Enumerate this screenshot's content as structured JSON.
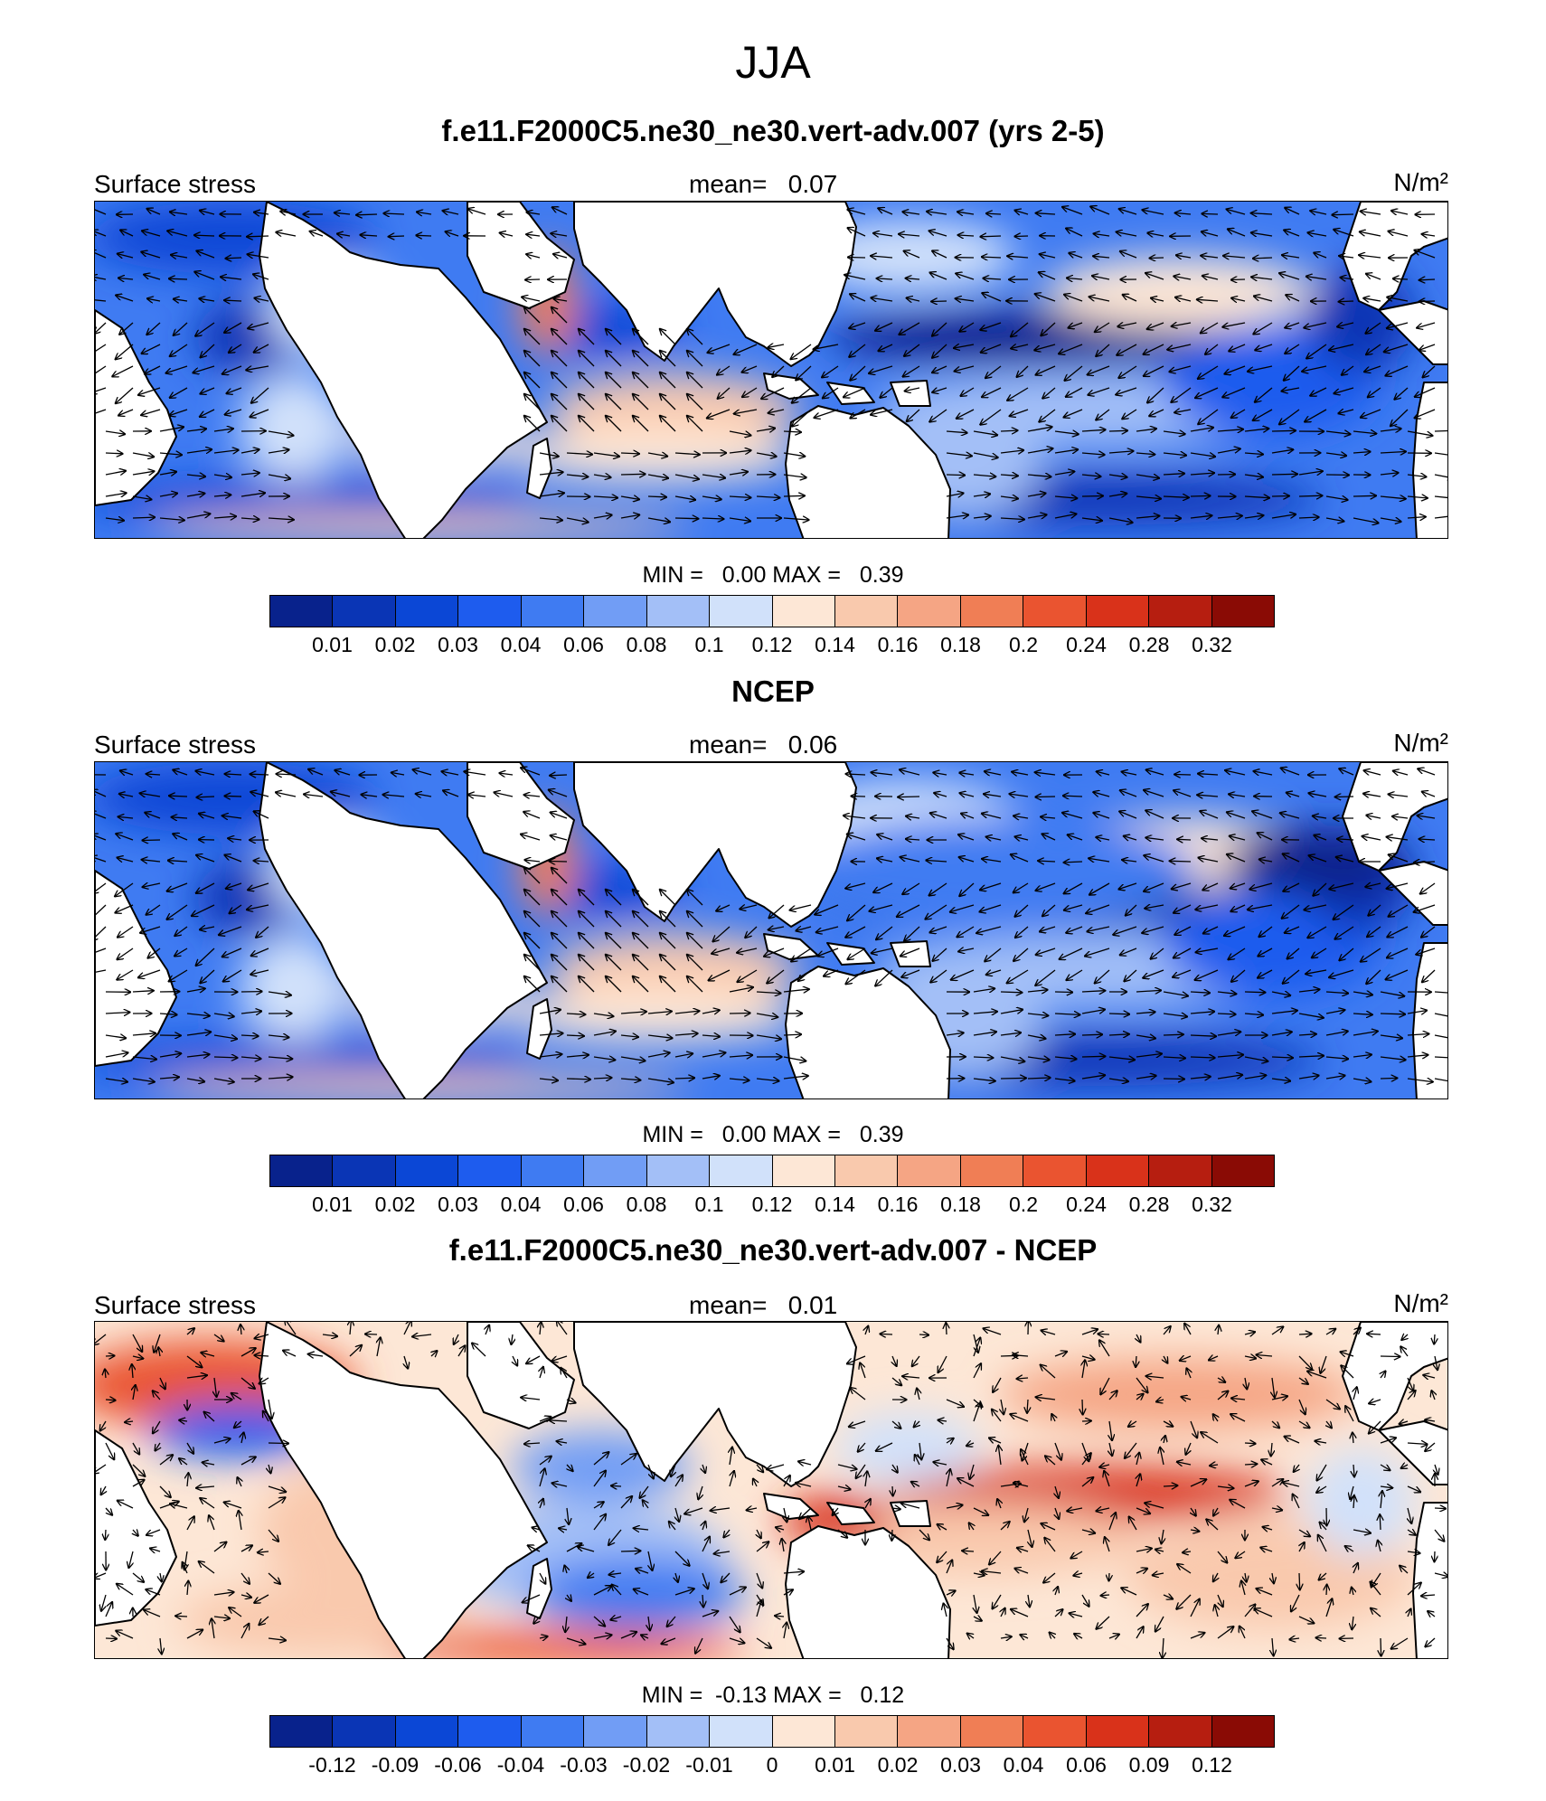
{
  "title": "JJA",
  "panels": [
    {
      "title": "f.e11.F2000C5.ne30_ne30.vert-adv.007 (yrs 2-5)",
      "left_label": "Surface stress",
      "mean_label": "mean=",
      "mean_value": "0.07",
      "units": "N/m²",
      "minmax": "MIN =   0.00 MAX =   0.39",
      "colorbar_ticks": [
        "0.01",
        "0.02",
        "0.03",
        "0.04",
        "0.06",
        "0.08",
        "0.1",
        "0.12",
        "0.14",
        "0.16",
        "0.18",
        "0.2",
        "0.24",
        "0.28",
        "0.32"
      ],
      "colorbar_colors": [
        "#08228c",
        "#0a35b5",
        "#0b47d6",
        "#1e5cee",
        "#3f7bf2",
        "#719df5",
        "#a3bff7",
        "#d1e1fa",
        "#fde7d6",
        "#f9c9ad",
        "#f5a584",
        "#f07e55",
        "#ea5430",
        "#d9321a",
        "#b61e10",
        "#8a0b05"
      ]
    },
    {
      "title": "NCEP",
      "left_label": "Surface stress",
      "mean_label": "mean=",
      "mean_value": "0.06",
      "units": "N/m²",
      "minmax": "MIN =   0.00 MAX =   0.39",
      "colorbar_ticks": [
        "0.01",
        "0.02",
        "0.03",
        "0.04",
        "0.06",
        "0.08",
        "0.1",
        "0.12",
        "0.14",
        "0.16",
        "0.18",
        "0.2",
        "0.24",
        "0.28",
        "0.32"
      ],
      "colorbar_colors": [
        "#08228c",
        "#0a35b5",
        "#0b47d6",
        "#1e5cee",
        "#3f7bf2",
        "#719df5",
        "#a3bff7",
        "#d1e1fa",
        "#fde7d6",
        "#f9c9ad",
        "#f5a584",
        "#f07e55",
        "#ea5430",
        "#d9321a",
        "#b61e10",
        "#8a0b05"
      ]
    },
    {
      "title": "f.e11.F2000C5.ne30_ne30.vert-adv.007 - NCEP",
      "left_label": "Surface stress",
      "mean_label": "mean=",
      "mean_value": "0.01",
      "units": "N/m²",
      "minmax": "MIN =  -0.13 MAX =   0.12",
      "colorbar_ticks": [
        "-0.12",
        "-0.09",
        "-0.06",
        "-0.04",
        "-0.03",
        "-0.02",
        "-0.01",
        "0",
        "0.01",
        "0.02",
        "0.03",
        "0.04",
        "0.06",
        "0.09",
        "0.12"
      ],
      "colorbar_colors": [
        "#08228c",
        "#0a35b5",
        "#0b47d6",
        "#1e5cee",
        "#3f7bf2",
        "#719df5",
        "#a3bff7",
        "#d1e1fa",
        "#fde7d6",
        "#f9c9ad",
        "#f5a584",
        "#f07e55",
        "#ea5430",
        "#d9321a",
        "#b61e10",
        "#8a0b05"
      ]
    }
  ],
  "map": {
    "land_color": "#ffffff",
    "coast_color": "#000000",
    "arrow_color": "#000000"
  }
}
